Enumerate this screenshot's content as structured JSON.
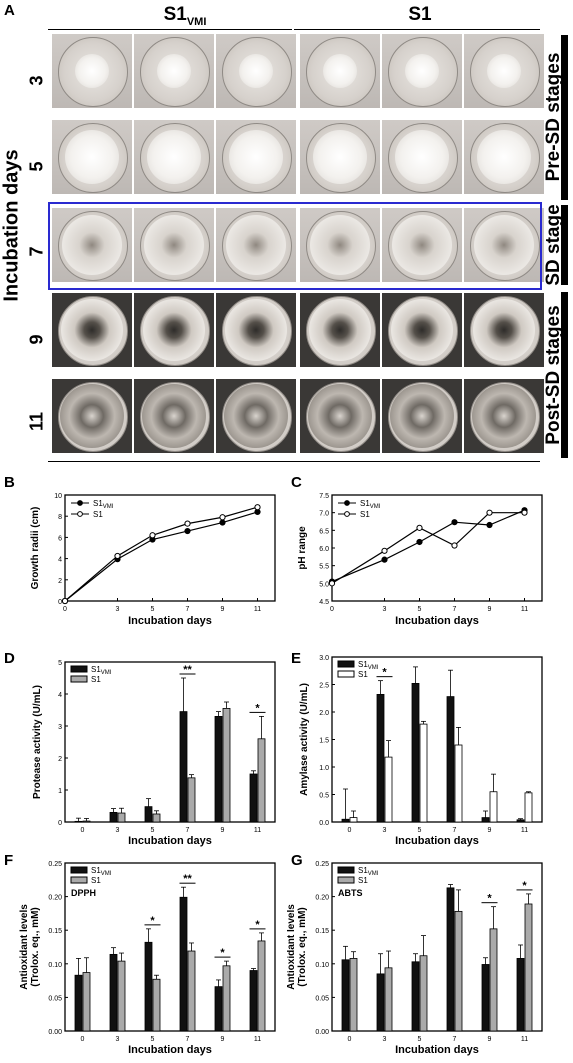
{
  "panelA": {
    "label": "A",
    "group_left": "S1",
    "group_left_sub": "VMI",
    "group_right": "S1",
    "y_title": "Incubation days",
    "days": [
      "3",
      "5",
      "7",
      "9",
      "11"
    ],
    "stages": [
      "Pre-SD stages",
      "SD stage",
      "Post-SD stages"
    ]
  },
  "legend": {
    "s1vmi_main": "S1",
    "s1vmi_sub": "VMI",
    "s1": "S1"
  },
  "chart_data": [
    {
      "panel": "B",
      "type": "line",
      "x": [
        0,
        3,
        5,
        7,
        9,
        11
      ],
      "xlabel": "Incubation days",
      "ylabel": "Growth radii (cm)",
      "xlim": [
        0,
        12
      ],
      "ylim": [
        0,
        10
      ],
      "xticks": [
        "0",
        "3",
        "5",
        "7",
        "9",
        "11"
      ],
      "yticks": [
        "0",
        "2",
        "4",
        "6",
        "8",
        "10"
      ],
      "series": [
        {
          "name": "S1VMI",
          "marker": "filled",
          "values": [
            0,
            3.95,
            5.8,
            6.6,
            7.4,
            8.4
          ]
        },
        {
          "name": "S1",
          "marker": "open",
          "values": [
            0,
            4.25,
            6.2,
            7.3,
            7.9,
            8.85
          ]
        }
      ],
      "legend": "top-left"
    },
    {
      "panel": "C",
      "type": "line",
      "x": [
        0,
        3,
        5,
        7,
        9,
        11
      ],
      "xlabel": "Incubation days",
      "ylabel": "pH range",
      "xlim": [
        0,
        12
      ],
      "ylim": [
        4.5,
        7.5
      ],
      "xticks": [
        "0",
        "3",
        "5",
        "7",
        "9",
        "11"
      ],
      "yticks": [
        "4.5",
        "5.0",
        "5.5",
        "6.0",
        "6.5",
        "7.0",
        "7.5"
      ],
      "series": [
        {
          "name": "S1VMI",
          "marker": "filled",
          "values": [
            5.05,
            5.67,
            6.17,
            6.73,
            6.65,
            7.07
          ]
        },
        {
          "name": "S1",
          "marker": "open",
          "values": [
            5.0,
            5.92,
            6.57,
            6.07,
            7.0,
            7.0
          ]
        }
      ],
      "legend": "top-left"
    },
    {
      "panel": "D",
      "type": "bar",
      "categories": [
        "0",
        "3",
        "5",
        "7",
        "9",
        "11"
      ],
      "xlabel": "Incubation days",
      "ylabel": "Protease activity (U/mL)",
      "ylim": [
        0,
        5
      ],
      "yticks": [
        "0",
        "1",
        "2",
        "3",
        "4",
        "5"
      ],
      "series": [
        {
          "name": "S1VMI",
          "values": [
            0.02,
            0.3,
            0.48,
            3.45,
            3.3,
            1.5
          ],
          "errors": [
            0.1,
            0.12,
            0.25,
            1.05,
            0.15,
            0.1
          ]
        },
        {
          "name": "S1",
          "values": [
            0.03,
            0.28,
            0.25,
            1.38,
            3.55,
            2.6
          ],
          "errors": [
            0.08,
            0.15,
            0.1,
            0.1,
            0.2,
            0.7
          ]
        }
      ],
      "significance": [
        {
          "category": "7",
          "label": "**"
        },
        {
          "category": "11",
          "label": "*"
        }
      ],
      "legend": "top-left"
    },
    {
      "panel": "E",
      "type": "bar",
      "categories": [
        "0",
        "3",
        "5",
        "7",
        "9",
        "11"
      ],
      "xlabel": "Incubation days",
      "ylabel": "Amylase activity (U/mL)",
      "ylim": [
        0,
        3.0
      ],
      "yticks": [
        "0.0",
        "0.5",
        "1.0",
        "1.5",
        "2.0",
        "2.5",
        "3.0"
      ],
      "series": [
        {
          "name": "S1VMI",
          "values": [
            0.05,
            2.32,
            2.52,
            2.28,
            0.08,
            0.04
          ],
          "errors": [
            0.55,
            0.25,
            0.3,
            0.48,
            0.12,
            0.02
          ]
        },
        {
          "name": "S1",
          "values": [
            0.08,
            1.18,
            1.78,
            1.4,
            0.55,
            0.53
          ],
          "errors": [
            0.12,
            0.3,
            0.05,
            0.32,
            0.32,
            0.02
          ]
        }
      ],
      "significance": [
        {
          "category": "3",
          "label": "*"
        }
      ],
      "legend": "top-left"
    },
    {
      "panel": "F",
      "type": "bar",
      "annotation": "DPPH",
      "categories": [
        "0",
        "3",
        "5",
        "7",
        "9",
        "11"
      ],
      "xlabel": "Incubation days",
      "ylabel": "Antioxidant levels (Trolox. eq., mM)",
      "ylim": [
        0,
        0.25
      ],
      "yticks": [
        "0.00",
        "0.05",
        "0.10",
        "0.15",
        "0.20",
        "0.25"
      ],
      "series": [
        {
          "name": "S1VMI",
          "values": [
            0.083,
            0.114,
            0.132,
            0.199,
            0.066,
            0.09
          ],
          "errors": [
            0.025,
            0.01,
            0.02,
            0.015,
            0.01,
            0.003
          ]
        },
        {
          "name": "S1",
          "values": [
            0.087,
            0.104,
            0.077,
            0.119,
            0.097,
            0.134
          ],
          "errors": [
            0.022,
            0.012,
            0.006,
            0.012,
            0.007,
            0.012
          ]
        }
      ],
      "significance": [
        {
          "category": "5",
          "label": "*"
        },
        {
          "category": "7",
          "label": "**"
        },
        {
          "category": "9",
          "label": "*"
        },
        {
          "category": "11",
          "label": "*"
        }
      ],
      "legend": "top-left"
    },
    {
      "panel": "G",
      "type": "bar",
      "annotation": "ABTS",
      "categories": [
        "0",
        "3",
        "5",
        "7",
        "9",
        "11"
      ],
      "xlabel": "Incubation days",
      "ylabel": "Antioxidant levels (Trolox. eq., mM)",
      "ylim": [
        0,
        0.25
      ],
      "yticks": [
        "0.00",
        "0.05",
        "0.10",
        "0.15",
        "0.20",
        "0.25"
      ],
      "series": [
        {
          "name": "S1VMI",
          "values": [
            0.106,
            0.085,
            0.103,
            0.213,
            0.099,
            0.108
          ],
          "errors": [
            0.02,
            0.03,
            0.012,
            0.005,
            0.01,
            0.02
          ]
        },
        {
          "name": "S1",
          "values": [
            0.108,
            0.094,
            0.112,
            0.178,
            0.152,
            0.189
          ],
          "errors": [
            0.01,
            0.025,
            0.03,
            0.032,
            0.033,
            0.015
          ]
        }
      ],
      "significance": [
        {
          "category": "9",
          "label": "*"
        },
        {
          "category": "11",
          "label": "*"
        }
      ],
      "legend": "top-left"
    }
  ]
}
